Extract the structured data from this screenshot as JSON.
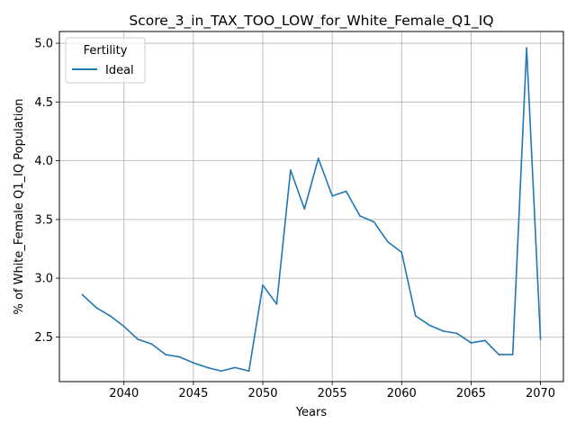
{
  "chart_data": {
    "type": "line",
    "title": "Score_3_in_TAX_TOO_LOW_for_White_Female_Q1_IQ",
    "xlabel": "Years",
    "ylabel": "% of White_Female Q1_IQ Population",
    "xlim": [
      2035.35,
      2071.65
    ],
    "ylim": [
      2.12,
      5.1
    ],
    "xticks": [
      2040,
      2045,
      2050,
      2055,
      2060,
      2065,
      2070
    ],
    "yticks": [
      2.5,
      3.0,
      3.5,
      4.0,
      4.5,
      5.0
    ],
    "xtick_labels": [
      "2040",
      "2045",
      "2050",
      "2055",
      "2060",
      "2065",
      "2070"
    ],
    "ytick_labels": [
      "2.5",
      "3.0",
      "3.5",
      "4.0",
      "4.5",
      "5.0"
    ],
    "grid": true,
    "legend": {
      "title": "Fertility",
      "placement": "top-left"
    },
    "series": [
      {
        "name": "Ideal",
        "color": "#1f77b4",
        "x": [
          2037,
          2038,
          2039,
          2040,
          2041,
          2042,
          2043,
          2044,
          2045,
          2046,
          2047,
          2048,
          2049,
          2050,
          2051,
          2052,
          2053,
          2054,
          2055,
          2056,
          2057,
          2058,
          2059,
          2060,
          2061,
          2062,
          2063,
          2064,
          2065,
          2066,
          2067,
          2068,
          2069,
          2070
        ],
        "y": [
          2.86,
          2.75,
          2.68,
          2.59,
          2.48,
          2.44,
          2.35,
          2.33,
          2.28,
          2.24,
          2.21,
          2.24,
          2.21,
          2.94,
          2.78,
          3.92,
          3.59,
          4.02,
          3.7,
          3.74,
          3.53,
          3.48,
          3.31,
          3.22,
          2.68,
          2.6,
          2.55,
          2.53,
          2.45,
          2.47,
          2.35,
          2.35,
          4.96,
          2.48
        ]
      }
    ]
  }
}
